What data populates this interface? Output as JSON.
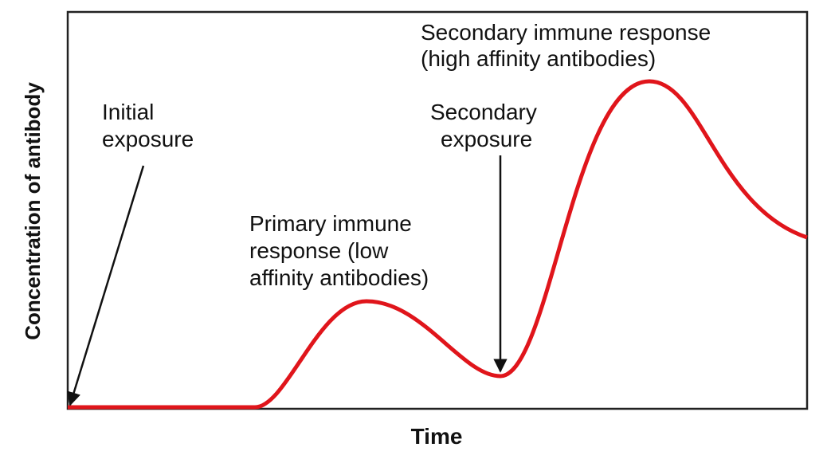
{
  "axes": {
    "y_label": "Concentration of antibody",
    "x_label": "Time"
  },
  "annotations": {
    "initial_exposure": [
      "Initial",
      "exposure"
    ],
    "secondary_exposure": [
      "Secondary",
      "exposure"
    ],
    "primary_response": [
      "Primary immune",
      "response (low",
      "affinity antibodies)"
    ],
    "secondary_response": [
      "Secondary immune response",
      "(high affinity antibodies)"
    ]
  }
}
